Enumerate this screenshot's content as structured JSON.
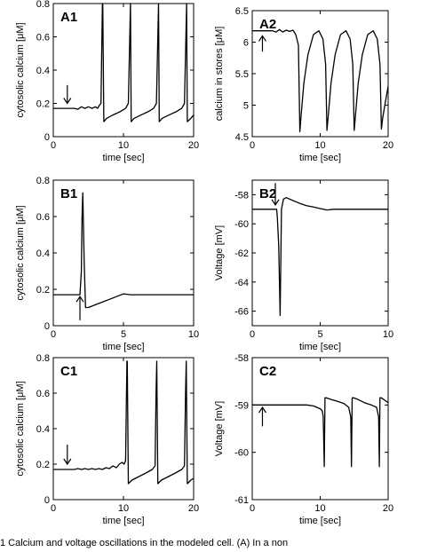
{
  "caption": "1    Calcium and voltage oscillations in the modeled cell. (A) In a non",
  "chart_data": [
    {
      "id": "A1",
      "type": "line",
      "label": "A1",
      "xlabel": "time [sec]",
      "ylabel": "cytosolic calcium [μM]",
      "xlim": [
        0,
        20
      ],
      "ylim": [
        0,
        0.8
      ],
      "xticks": [
        0,
        10,
        20
      ],
      "yticks": [
        0,
        0.2,
        0.4,
        0.6,
        0.8
      ],
      "ytick_labels": [
        "0",
        "0.2",
        "0.4",
        "0.6",
        "0.8"
      ],
      "grid": false,
      "arrow": {
        "x": 2,
        "y_from": 0.31,
        "y_to": 0.2,
        "direction": "down"
      },
      "series": [
        {
          "x": [
            0,
            2,
            3,
            3.5,
            4,
            4.5,
            5,
            5.5,
            6,
            6.3,
            6.6,
            6.8,
            7,
            7.05,
            7.2,
            7.6,
            8.5,
            9.5,
            10.3,
            10.7,
            10.9,
            11,
            11.1,
            11.5,
            12.5,
            13.5,
            14.3,
            14.7,
            14.9,
            15,
            15.1,
            15.5,
            16.5,
            17.5,
            18.3,
            18.7,
            18.9,
            19,
            19.1,
            19.6,
            20
          ],
          "y": [
            0.17,
            0.17,
            0.17,
            0.165,
            0.18,
            0.17,
            0.18,
            0.17,
            0.18,
            0.17,
            0.19,
            0.2,
            0.8,
            0.8,
            0.09,
            0.11,
            0.13,
            0.15,
            0.17,
            0.2,
            0.6,
            0.8,
            0.09,
            0.11,
            0.13,
            0.15,
            0.17,
            0.2,
            0.6,
            0.8,
            0.09,
            0.11,
            0.13,
            0.15,
            0.17,
            0.2,
            0.6,
            0.8,
            0.09,
            0.11,
            0.13
          ]
        }
      ]
    },
    {
      "id": "A2",
      "type": "line",
      "label": "A2",
      "xlabel": "time [sec]",
      "ylabel": "calcium in stores [μM]",
      "xlim": [
        0,
        20
      ],
      "ylim": [
        4.5,
        6.5
      ],
      "xticks": [
        0,
        10,
        20
      ],
      "yticks": [
        4.5,
        5,
        5.5,
        6,
        6.5
      ],
      "ytick_labels": [
        "4.5",
        "5",
        "5.5",
        "6",
        "6.5"
      ],
      "grid": false,
      "arrow": {
        "x": 1.5,
        "y_from": 5.85,
        "y_to": 6.1,
        "direction": "up"
      },
      "series": [
        {
          "x": [
            0,
            3,
            3.5,
            4,
            4.5,
            5,
            5.5,
            6,
            6.4,
            6.8,
            7,
            7.2,
            7.6,
            8.2,
            9,
            9.8,
            10.4,
            10.8,
            11,
            11.2,
            11.6,
            12.2,
            13,
            13.8,
            14.4,
            14.8,
            15,
            15.2,
            15.6,
            16.2,
            17,
            17.8,
            18.4,
            18.8,
            19,
            19.2,
            19.6,
            20
          ],
          "y": [
            6.18,
            6.18,
            6.16,
            6.2,
            6.16,
            6.19,
            6.17,
            6.19,
            6.12,
            5.95,
            4.58,
            4.85,
            5.35,
            5.8,
            6.12,
            6.18,
            6.05,
            5.65,
            4.6,
            4.85,
            5.35,
            5.8,
            6.12,
            6.18,
            6.05,
            5.65,
            4.6,
            4.85,
            5.35,
            5.8,
            6.12,
            6.18,
            6.05,
            5.65,
            4.62,
            4.8,
            5.05,
            5.3
          ]
        }
      ]
    },
    {
      "id": "B1",
      "type": "line",
      "label": "B1",
      "xlabel": "time [sec]",
      "ylabel": "cytosolic calcium [μM]",
      "xlim": [
        0,
        10
      ],
      "ylim": [
        0,
        0.8
      ],
      "xticks": [
        0,
        5,
        10
      ],
      "yticks": [
        0,
        0.2,
        0.4,
        0.6,
        0.8
      ],
      "ytick_labels": [
        "0",
        "0.2",
        "0.4",
        "0.6",
        "0.8"
      ],
      "grid": false,
      "arrow": {
        "x": 1.9,
        "y_from": 0.03,
        "y_to": 0.16,
        "direction": "up"
      },
      "series": [
        {
          "x": [
            0,
            1.9,
            2,
            2.05,
            2.1,
            2.2,
            2.3,
            2.5,
            3,
            3.5,
            4,
            4.5,
            5,
            5.5,
            6,
            7,
            8,
            9,
            10
          ],
          "y": [
            0.17,
            0.17,
            0.3,
            0.6,
            0.73,
            0.35,
            0.1,
            0.1,
            0.115,
            0.13,
            0.145,
            0.16,
            0.175,
            0.17,
            0.17,
            0.17,
            0.17,
            0.17,
            0.17
          ]
        }
      ]
    },
    {
      "id": "B2",
      "type": "line",
      "label": "B2",
      "xlabel": "time [sec]",
      "ylabel": "Voltage [mV]",
      "xlim": [
        0,
        10
      ],
      "ylim": [
        -67,
        -57
      ],
      "xticks": [
        0,
        5,
        10
      ],
      "yticks": [
        -66,
        -64,
        -62,
        -60,
        -58
      ],
      "ytick_labels": [
        "-66",
        "-64",
        "-62",
        "-60",
        "-58"
      ],
      "grid": false,
      "arrow": {
        "x": 1.7,
        "y_from": -57.2,
        "y_to": -58.7,
        "direction": "down"
      },
      "series": [
        {
          "x": [
            0,
            1.8,
            1.85,
            1.95,
            2.05,
            2.15,
            2.3,
            2.5,
            3,
            3.5,
            4,
            4.5,
            5,
            5.5,
            6,
            7,
            8,
            9,
            10
          ],
          "y": [
            -59,
            -59,
            -59.6,
            -61.5,
            -66.3,
            -59,
            -58.3,
            -58.2,
            -58.4,
            -58.6,
            -58.75,
            -58.85,
            -58.95,
            -59.05,
            -59,
            -59,
            -59,
            -59,
            -59
          ]
        }
      ]
    },
    {
      "id": "C1",
      "type": "line",
      "label": "C1",
      "xlabel": "time [sec]",
      "ylabel": "cytosolic calcium [μM]",
      "xlim": [
        0,
        20
      ],
      "ylim": [
        0,
        0.8
      ],
      "xticks": [
        0,
        10,
        20
      ],
      "yticks": [
        0,
        0.2,
        0.4,
        0.6,
        0.8
      ],
      "ytick_labels": [
        "0",
        "0.2",
        "0.4",
        "0.6",
        "0.8"
      ],
      "grid": false,
      "arrow": {
        "x": 2,
        "y_from": 0.31,
        "y_to": 0.2,
        "direction": "down"
      },
      "series": [
        {
          "x": [
            0,
            2,
            3,
            3.5,
            4,
            4.5,
            5,
            5.5,
            6,
            6.5,
            7,
            7.5,
            8,
            8.5,
            9,
            9.4,
            9.8,
            10.1,
            10.3,
            10.5,
            10.55,
            10.7,
            11.2,
            12.2,
            13.2,
            14.1,
            14.5,
            14.65,
            14.75,
            14.9,
            15.4,
            16.4,
            17.4,
            18.3,
            18.7,
            18.85,
            18.95,
            19.1,
            19.6,
            20
          ],
          "y": [
            0.17,
            0.17,
            0.17,
            0.175,
            0.17,
            0.175,
            0.17,
            0.175,
            0.17,
            0.175,
            0.17,
            0.18,
            0.175,
            0.19,
            0.18,
            0.2,
            0.21,
            0.2,
            0.22,
            0.78,
            0.78,
            0.09,
            0.11,
            0.13,
            0.15,
            0.17,
            0.19,
            0.6,
            0.78,
            0.09,
            0.11,
            0.13,
            0.15,
            0.17,
            0.19,
            0.6,
            0.78,
            0.09,
            0.11,
            0.12
          ]
        }
      ]
    },
    {
      "id": "C2",
      "type": "line",
      "label": "C2",
      "xlabel": "time [sec]",
      "ylabel": "Voltage [mV]",
      "xlim": [
        0,
        20
      ],
      "ylim": [
        -61,
        -58
      ],
      "xticks": [
        0,
        10,
        20
      ],
      "yticks": [
        -61,
        -60,
        -59,
        -58
      ],
      "ytick_labels": [
        "-61",
        "-60",
        "-59",
        "-58"
      ],
      "grid": false,
      "arrow": {
        "x": 1.5,
        "y_from": -59.45,
        "y_to": -59.05,
        "direction": "up"
      },
      "series": [
        {
          "x": [
            0,
            6,
            7,
            8,
            9,
            9.5,
            10,
            10.3,
            10.45,
            10.6,
            10.7,
            10.9,
            11.5,
            12.5,
            13.5,
            14.2,
            14.5,
            14.6,
            14.7,
            14.9,
            15.5,
            16.5,
            17.5,
            18.3,
            18.6,
            18.7,
            18.8,
            19,
            19.5,
            20
          ],
          "y": [
            -59,
            -59,
            -59,
            -59,
            -59.02,
            -59.05,
            -59.08,
            -59.12,
            -59.25,
            -60.3,
            -58.85,
            -58.85,
            -58.88,
            -58.92,
            -58.97,
            -59.05,
            -59.25,
            -60.3,
            -58.85,
            -58.85,
            -58.88,
            -58.95,
            -59,
            -59.05,
            -59.25,
            -60.3,
            -58.85,
            -58.85,
            -58.9,
            -58.95
          ]
        }
      ]
    }
  ]
}
